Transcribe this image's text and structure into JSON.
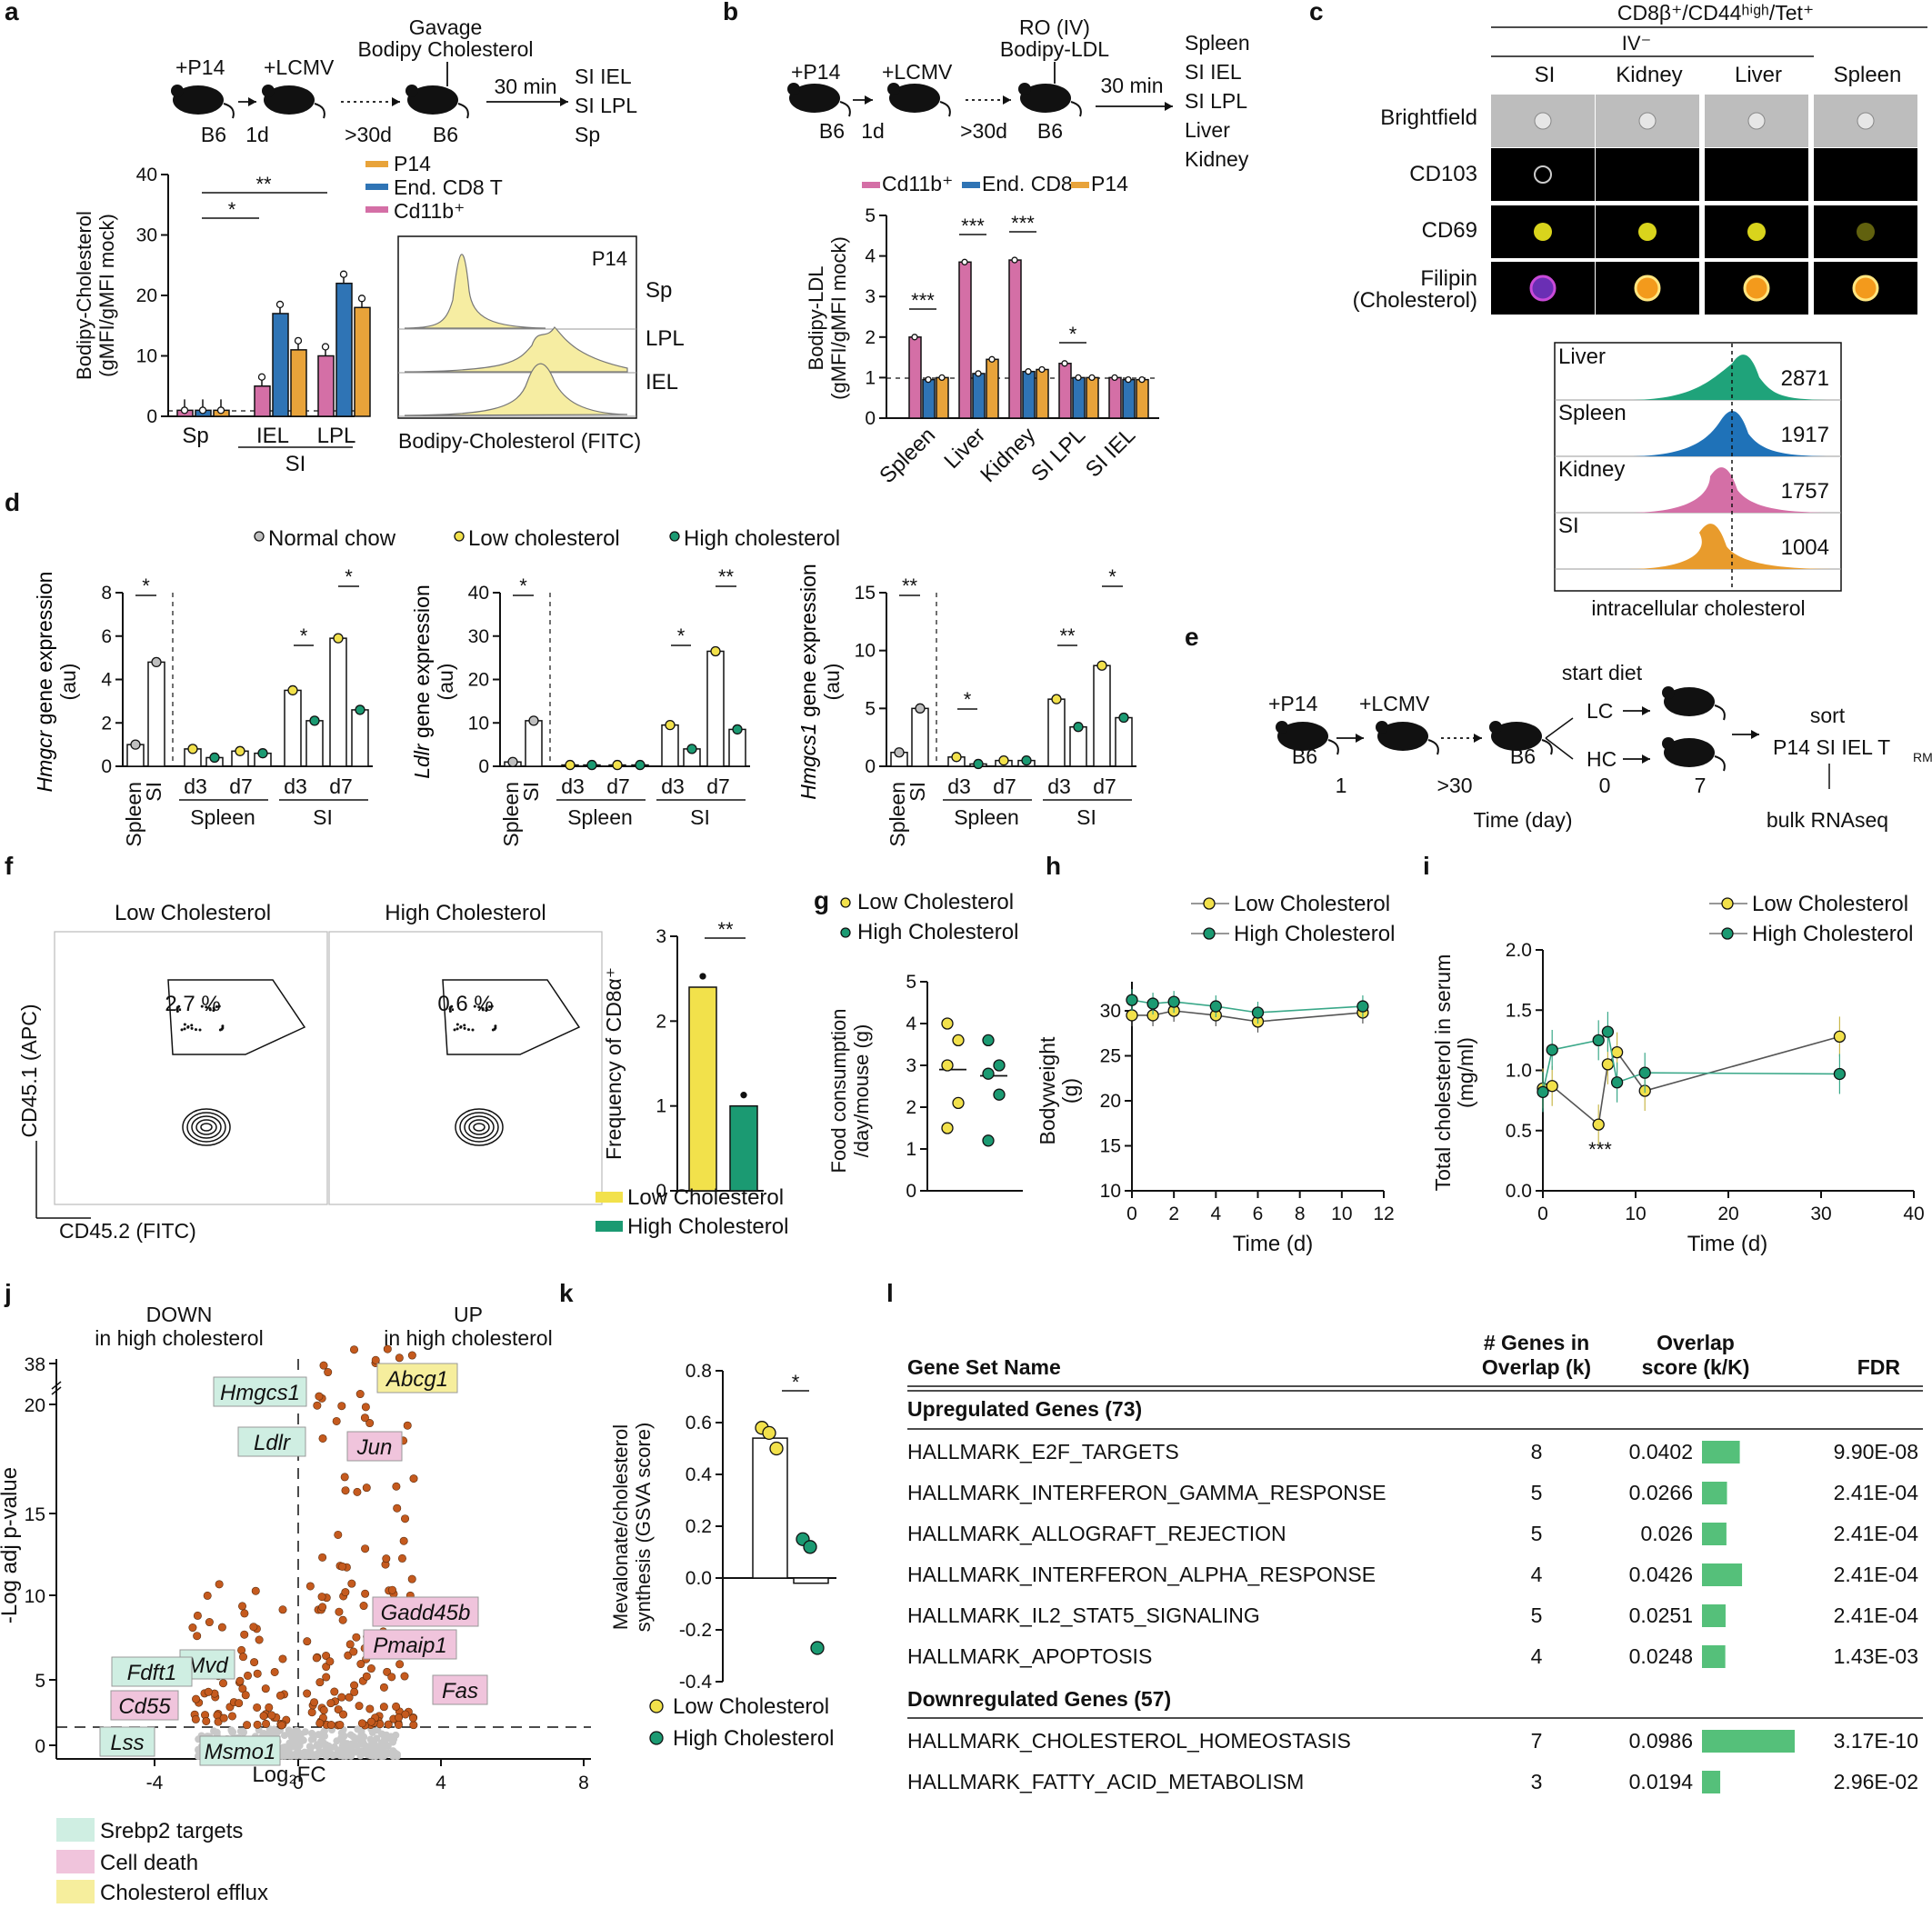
{
  "panels": {
    "a": {
      "letter": "a",
      "schematic": {
        "inj1": "+P14",
        "inj2": "+LCMV",
        "gavage": "Gavage",
        "gavage2": "Bodipy Cholesterol",
        "m1": "B6",
        "d1": "1d",
        "d2": ">30d",
        "m3": "B6",
        "time": "30 min",
        "tissues": [
          "SI IEL",
          "SI LPL",
          "Sp"
        ]
      },
      "legend": [
        {
          "label": "P14",
          "color": "#e8a33a"
        },
        {
          "label": "End. CD8 T",
          "color": "#2f74b5"
        },
        {
          "label": "Cd11b⁺",
          "color": "#d46fa6"
        }
      ],
      "ylabel": [
        "Bodipy-Cholesterol",
        "(gMFI/gMFI mock)"
      ],
      "yticks": [
        "0",
        "10",
        "20",
        "30",
        "40"
      ],
      "groups": [
        "Sp",
        "IEL",
        "LPL"
      ],
      "group_sub": "SI",
      "sig": [
        "*",
        "**"
      ],
      "hist": {
        "title": "P14",
        "rows": [
          "Sp",
          "LPL",
          "IEL"
        ],
        "xlabel": "Bodipy-Cholesterol (FITC)"
      }
    },
    "b": {
      "letter": "b",
      "schematic": {
        "inj1": "+P14",
        "inj2": "+LCMV",
        "ro": "RO (IV)",
        "ro2": "Bodipy-LDL",
        "m1": "B6",
        "d1": "1d",
        "d2": ">30d",
        "m3": "B6",
        "time": "30 min",
        "tissues": [
          "Spleen",
          "SI IEL",
          "SI LPL",
          "Liver",
          "Kidney"
        ]
      },
      "legend": [
        {
          "label": "Cd11b⁺",
          "color": "#d46fa6"
        },
        {
          "label": "End. CD8",
          "color": "#2f74b5"
        },
        {
          "label": "P14",
          "color": "#e8a33a"
        }
      ],
      "ylabel": [
        "Bodipy-LDL",
        "(gMFI/gMFI mock)"
      ],
      "yticks": [
        "0",
        "1",
        "2",
        "3",
        "4",
        "5"
      ],
      "categories": [
        "Spleen",
        "Liver",
        "Kidney",
        "SI LPL",
        "SI IEL"
      ],
      "sig": [
        "***",
        "***",
        "***",
        "*"
      ]
    },
    "c": {
      "letter": "c",
      "header": "CD8β⁺/CD44ʰⁱᵍʰ/Tet⁺",
      "iv": "IV⁻",
      "cols": [
        "SI",
        "Kidney",
        "Liver",
        "Spleen"
      ],
      "rows": [
        "Brightfield",
        "CD103",
        "CD69",
        "Filipin",
        "(Cholesterol)"
      ],
      "hist": [
        {
          "label": "Liver",
          "value": "2871",
          "color": "#1fa37a"
        },
        {
          "label": "Spleen",
          "value": "1917",
          "color": "#1f72b8"
        },
        {
          "label": "Kidney",
          "value": "1757",
          "color": "#d46fa6"
        },
        {
          "label": "SI",
          "value": "1004",
          "color": "#e89b2c"
        }
      ],
      "hist_xlabel": "intracellular cholesterol"
    },
    "d": {
      "letter": "d",
      "legend": [
        "Normal chow",
        "Low cholesterol",
        "High cholesterol"
      ],
      "plots": [
        {
          "gene": "Hmgcr",
          "ylabel_rest": " gene expression",
          "ylabel2": "(au)",
          "yticks": [
            "0",
            "2",
            "4",
            "6",
            "8"
          ],
          "sig": [
            "*",
            "*",
            "*"
          ]
        },
        {
          "gene": "Ldlr",
          "ylabel_rest": " gene expression",
          "ylabel2": "(au)",
          "yticks": [
            "0",
            "10",
            "20",
            "30",
            "40"
          ],
          "sig": [
            "*",
            "*",
            "**"
          ]
        },
        {
          "gene": "Hmgcs1",
          "ylabel_rest": " gene expression",
          "ylabel2": "(au)",
          "yticks": [
            "0",
            "5",
            "10",
            "15"
          ],
          "sig": [
            "**",
            "**",
            "*",
            "*"
          ]
        }
      ],
      "xl": {
        "spleen": "Spleen",
        "si": "SI",
        "d3": "d3",
        "d7": "d7"
      }
    },
    "e": {
      "letter": "e",
      "inj1": "+P14",
      "inj2": "+LCMV",
      "start": "start diet",
      "lc": "LC",
      "hc": "HC",
      "sort": "sort",
      "sortpop": "P14 SI IEL T",
      "sortsub": "RM",
      "rna": "bulk RNAseq",
      "m1": "B6",
      "m3": "B6",
      "t1": "1",
      "t2": ">30",
      "t3": "0",
      "t4": "7",
      "xlabel": "Time (day)"
    },
    "f": {
      "letter": "f",
      "t1": "Low Cholesterol",
      "t2": "High Cholesterol",
      "p1": "2.7 %",
      "p2": "0.6 %",
      "yl": "CD45.1 (APC)",
      "xl": "CD45.2 (FITC)",
      "bar_ylabel": "Frequency of CD8α⁺",
      "yticks": [
        "0",
        "1",
        "2",
        "3"
      ],
      "sig": "**",
      "legend": [
        "Low Cholesterol",
        "High Cholesterol"
      ]
    },
    "g": {
      "letter": "g",
      "legend": [
        "Low Cholesterol",
        "High Cholesterol"
      ],
      "ylabel": [
        "Food consumption",
        "/day/mouse (g)"
      ],
      "yticks": [
        "0",
        "1",
        "2",
        "3",
        "4",
        "5"
      ]
    },
    "h": {
      "letter": "h",
      "legend": [
        "Low Cholesterol",
        "High Cholesterol"
      ],
      "ylabel": [
        "Bodyweight",
        "(g)"
      ],
      "xlabel": "Time (d)",
      "yticks": [
        "10",
        "15",
        "20",
        "25",
        "30"
      ],
      "xticks": [
        "0",
        "2",
        "4",
        "6",
        "8",
        "10",
        "12"
      ]
    },
    "i": {
      "letter": "i",
      "legend": [
        "Low Cholesterol",
        "High Cholesterol"
      ],
      "ylabel": [
        "Total cholesterol in serum",
        "(mg/ml)"
      ],
      "xlabel": "Time (d)",
      "yticks": [
        "0.0",
        "0.5",
        "1.0",
        "1.5",
        "2.0"
      ],
      "xticks": [
        "0",
        "10",
        "20",
        "30",
        "40"
      ],
      "sig": "***"
    },
    "j": {
      "letter": "j",
      "down": [
        "DOWN",
        "in high cholesterol"
      ],
      "up": [
        "UP",
        "in high cholesterol"
      ],
      "ylabel": "-Log adj p-value",
      "xlabel": "Log₂FC",
      "yticks": [
        "0",
        "5",
        "10",
        "15",
        "20",
        "38"
      ],
      "xticks": [
        "-4",
        "0",
        "4",
        "8"
      ],
      "genes": [
        "Abcg1",
        "Jun",
        "Hmgcs1",
        "Ldlr",
        "Gadd45b",
        "Pmaip1",
        "Mvd",
        "Fdft1",
        "Cd55",
        "Fas",
        "Lss",
        "Msmo1"
      ],
      "legend": [
        "Srebp2 targets",
        "Cell death",
        "Cholesterol efflux"
      ]
    },
    "k": {
      "letter": "k",
      "ylabel": [
        "Mevalonate/cholesterol",
        "synthesis (GSVA score)"
      ],
      "yticks": [
        "-0.4",
        "-0.2",
        "0.0",
        "0.2",
        "0.4",
        "0.6",
        "0.8"
      ],
      "sig": "*",
      "legend": [
        "Low Cholesterol",
        "High Cholesterol"
      ]
    },
    "l": {
      "letter": "l",
      "headers": {
        "name": "Gene Set Name",
        "k1": "# Genes in",
        "k2": "Overlap (k)",
        "o1": "Overlap",
        "o2": "score (k/K)",
        "fdr": "FDR"
      },
      "up_title": "Upregulated Genes (73)",
      "down_title": "Downregulated Genes (57)",
      "up_rows": [
        {
          "name": "HALLMARK_E2F_TARGETS",
          "k": "8",
          "score": "0.0402",
          "fdr": "9.90E-08",
          "val": 0.0402
        },
        {
          "name": "HALLMARK_INTERFERON_GAMMA_RESPONSE",
          "k": "5",
          "score": "0.0266",
          "fdr": "2.41E-04",
          "val": 0.0266
        },
        {
          "name": "HALLMARK_ALLOGRAFT_REJECTION",
          "k": "5",
          "score": "0.026",
          "fdr": "2.41E-04",
          "val": 0.026
        },
        {
          "name": "HALLMARK_INTERFERON_ALPHA_RESPONSE",
          "k": "4",
          "score": "0.0426",
          "fdr": "2.41E-04",
          "val": 0.0426
        },
        {
          "name": "HALLMARK_IL2_STAT5_SIGNALING",
          "k": "5",
          "score": "0.0251",
          "fdr": "2.41E-04",
          "val": 0.0251
        },
        {
          "name": "HALLMARK_APOPTOSIS",
          "k": "4",
          "score": "0.0248",
          "fdr": "1.43E-03",
          "val": 0.0248
        }
      ],
      "down_rows": [
        {
          "name": "HALLMARK_CHOLESTEROL_HOMEOSTASIS",
          "k": "7",
          "score": "0.0986",
          "fdr": "3.17E-10",
          "val": 0.0986
        },
        {
          "name": "HALLMARK_FATTY_ACID_METABOLISM",
          "k": "3",
          "score": "0.0194",
          "fdr": "2.96E-02",
          "val": 0.0194
        }
      ]
    }
  },
  "colors": {
    "lc": "#f2e14b",
    "hc": "#1b9a72",
    "nc": "#bfbfbf",
    "p14": "#e8a33a",
    "endo": "#2f74b5",
    "cd11b": "#d46fa6",
    "volcano": "#c55a1e",
    "srebp": "#cfeee2",
    "death": "#f0c4dc",
    "efflux": "#f6ee9d",
    "bar": "#55c07a"
  },
  "chart_data": [
    {
      "panel": "a",
      "type": "bar",
      "categories": [
        "Sp",
        "IEL",
        "LPL"
      ],
      "series": [
        {
          "name": "Cd11b⁺",
          "values": [
            1,
            5,
            10
          ]
        },
        {
          "name": "End. CD8 T",
          "values": [
            1,
            17,
            22
          ]
        },
        {
          "name": "P14",
          "values": [
            1,
            11,
            18
          ]
        }
      ],
      "ylim": [
        0,
        40
      ]
    },
    {
      "panel": "b",
      "type": "bar",
      "categories": [
        "Spleen",
        "Liver",
        "Kidney",
        "SI LPL",
        "SI IEL"
      ],
      "series": [
        {
          "name": "Cd11b⁺",
          "values": [
            2.0,
            3.85,
            3.9,
            1.35,
            1.0
          ]
        },
        {
          "name": "End. CD8",
          "values": [
            0.95,
            1.1,
            1.15,
            1.0,
            0.95
          ]
        },
        {
          "name": "P14",
          "values": [
            1.0,
            1.45,
            1.2,
            1.0,
            0.95
          ]
        }
      ],
      "ylim": [
        0,
        5
      ]
    },
    {
      "panel": "d-Hmgcr",
      "type": "bar",
      "categories": [
        "Spleen",
        "SI",
        "Spleen d3 LC",
        "Spleen d3 HC",
        "Spleen d7 LC",
        "Spleen d7 HC",
        "SI d3 LC",
        "SI d3 HC",
        "SI d7 LC",
        "SI d7 HC"
      ],
      "values": [
        1.0,
        4.8,
        0.8,
        0.4,
        0.7,
        0.6,
        3.5,
        2.1,
        5.9,
        2.6
      ],
      "ylim": [
        0,
        8
      ]
    },
    {
      "panel": "d-Ldlr",
      "type": "bar",
      "categories": [
        "Spleen",
        "SI",
        "Spleen d3 LC",
        "Spleen d3 HC",
        "Spleen d7 LC",
        "Spleen d7 HC",
        "SI d3 LC",
        "SI d3 HC",
        "SI d7 LC",
        "SI d7 HC"
      ],
      "values": [
        1.0,
        10.5,
        0.3,
        0.3,
        0.3,
        0.3,
        9.5,
        4.0,
        26.5,
        8.5
      ],
      "ylim": [
        0,
        40
      ]
    },
    {
      "panel": "d-Hmgcs1",
      "type": "bar",
      "categories": [
        "Spleen",
        "SI",
        "Spleen d3 LC",
        "Spleen d3 HC",
        "Spleen d7 LC",
        "Spleen d7 HC",
        "SI d3 LC",
        "SI d3 HC",
        "SI d7 LC",
        "SI d7 HC"
      ],
      "values": [
        1.2,
        5.0,
        0.8,
        0.2,
        0.5,
        0.5,
        5.8,
        3.4,
        8.7,
        4.2
      ],
      "ylim": [
        0,
        15
      ]
    },
    {
      "panel": "f",
      "type": "bar",
      "categories": [
        "Low Cholesterol",
        "High Cholesterol"
      ],
      "values": [
        2.4,
        1.0
      ],
      "ylim": [
        0,
        3
      ]
    },
    {
      "panel": "g",
      "type": "scatter",
      "categories": [
        "Low Cholesterol",
        "High Cholesterol"
      ],
      "values": [
        2.9,
        2.75
      ],
      "points": [
        [
          4.0,
          3.6,
          3.0,
          2.1,
          1.5
        ],
        [
          3.6,
          3.0,
          2.8,
          2.3,
          1.2
        ]
      ],
      "ylim": [
        0,
        5
      ]
    },
    {
      "panel": "h",
      "type": "line",
      "x": [
        0,
        1,
        2,
        4,
        6,
        11
      ],
      "series": [
        {
          "name": "Low Cholesterol",
          "values": [
            29.5,
            29.5,
            30.0,
            29.5,
            28.8,
            29.8
          ]
        },
        {
          "name": "High Cholesterol",
          "values": [
            31.2,
            30.8,
            31.0,
            30.5,
            29.8,
            30.5
          ]
        }
      ],
      "xlim": [
        0,
        12
      ],
      "ylim": [
        10,
        32
      ]
    },
    {
      "panel": "i",
      "type": "line",
      "series": [
        {
          "name": "Low Cholesterol",
          "x": [
            0,
            1,
            6,
            7,
            8,
            11,
            32
          ],
          "values": [
            0.85,
            0.87,
            0.55,
            1.05,
            1.15,
            0.83,
            1.28
          ]
        },
        {
          "name": "High Cholesterol",
          "x": [
            0,
            1,
            6,
            7,
            8,
            11,
            32
          ],
          "values": [
            0.82,
            1.17,
            1.25,
            1.32,
            0.9,
            0.98,
            0.97
          ]
        }
      ],
      "xlim": [
        0,
        40
      ],
      "ylim": [
        0,
        2
      ]
    },
    {
      "panel": "k",
      "type": "bar",
      "categories": [
        "Low Cholesterol",
        "High Cholesterol"
      ],
      "values": [
        0.54,
        -0.02
      ],
      "points": [
        [
          0.58,
          0.56,
          0.5
        ],
        [
          0.15,
          0.12,
          -0.27
        ]
      ],
      "ylim": [
        -0.4,
        0.8
      ]
    },
    {
      "panel": "j",
      "type": "scatter",
      "xlabel": "Log₂FC",
      "ylabel": "-Log adj p-value",
      "xlim": [
        -5.5,
        8.5
      ],
      "labeled": [
        {
          "gene": "Abcg1",
          "x": 1.8,
          "y": 38
        },
        {
          "gene": "Jun",
          "x": 0.7,
          "y": 18.5
        },
        {
          "gene": "Hmgcs1",
          "x": -0.8,
          "y": 6.5
        },
        {
          "gene": "Ldlr",
          "x": -0.5,
          "y": 5.5
        },
        {
          "gene": "Gadd45b",
          "x": 0.9,
          "y": 5.5
        },
        {
          "gene": "Pmaip1",
          "x": 0.6,
          "y": 4.0
        },
        {
          "gene": "Mvd",
          "x": -0.4,
          "y": 3.0
        },
        {
          "gene": "Fdft1",
          "x": -0.6,
          "y": 2.8
        },
        {
          "gene": "Cd55",
          "x": -0.6,
          "y": 2.2
        },
        {
          "gene": "Fas",
          "x": 1.3,
          "y": 3.2
        },
        {
          "gene": "Lss",
          "x": -0.5,
          "y": 1.5
        },
        {
          "gene": "Msmo1",
          "x": -0.5,
          "y": 2.0
        }
      ]
    }
  ]
}
